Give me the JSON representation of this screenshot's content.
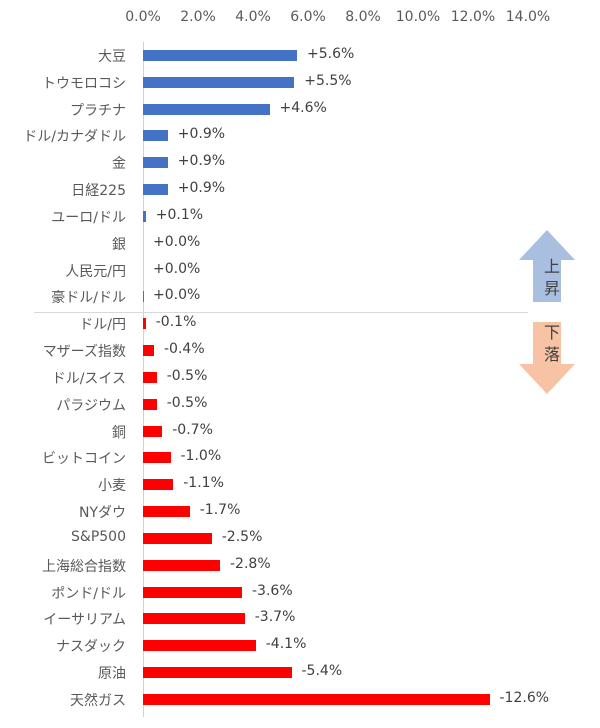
{
  "chart_data": {
    "type": "bar",
    "orientation": "horizontal",
    "title": "",
    "xlabel": "",
    "ylabel": "",
    "xlim": [
      0,
      14
    ],
    "x_tick_labels": [
      "0.0%",
      "2.0%",
      "4.0%",
      "6.0%",
      "8.0%",
      "10.0%",
      "12.0%",
      "14.0%"
    ],
    "x_axis_position": "top",
    "grid": false,
    "value_axis_note": "bars show absolute magnitude; sign shown in data labels",
    "categories": [
      "大豆",
      "トウモロコシ",
      "プラチナ",
      "ドル/カナダドル",
      "金",
      "日経225",
      "ユーロ/ドル",
      "銀",
      "人民元/円",
      "豪ドル/ドル",
      "ドル/円",
      "マザーズ指数",
      "ドル/スイス",
      "パラジウム",
      "銅",
      "ビットコイン",
      "小麦",
      "NYダウ",
      "S&P500",
      "上海総合指数",
      "ポンド/ドル",
      "イーサリアム",
      "ナスダック",
      "原油",
      "天然ガス"
    ],
    "values": [
      5.6,
      5.5,
      4.6,
      0.9,
      0.9,
      0.9,
      0.1,
      0.0,
      0.0,
      0.0,
      -0.1,
      -0.4,
      -0.5,
      -0.5,
      -0.7,
      -1.0,
      -1.1,
      -1.7,
      -2.5,
      -2.8,
      -3.6,
      -3.7,
      -4.1,
      -5.4,
      -12.6
    ],
    "data_labels": [
      "+5.6%",
      "+5.5%",
      "+4.6%",
      "+0.9%",
      "+0.9%",
      "+0.9%",
      "+0.1%",
      "+0.0%",
      "+0.0%",
      "+0.0%",
      "-0.1%",
      "-0.4%",
      "-0.5%",
      "-0.5%",
      "-0.7%",
      "-1.0%",
      "-1.1%",
      "-1.7%",
      "-2.5%",
      "-2.8%",
      "-3.6%",
      "-3.7%",
      "-4.1%",
      "-5.4%",
      "-12.6%"
    ],
    "colors": {
      "up": "#4472c4",
      "down": "#ff0000"
    },
    "annotations": [
      {
        "text": "上昇",
        "shape": "up-arrow",
        "color": "#a9bfe0"
      },
      {
        "text": "下落",
        "shape": "down-arrow",
        "color": "#f8c3a4"
      }
    ]
  }
}
